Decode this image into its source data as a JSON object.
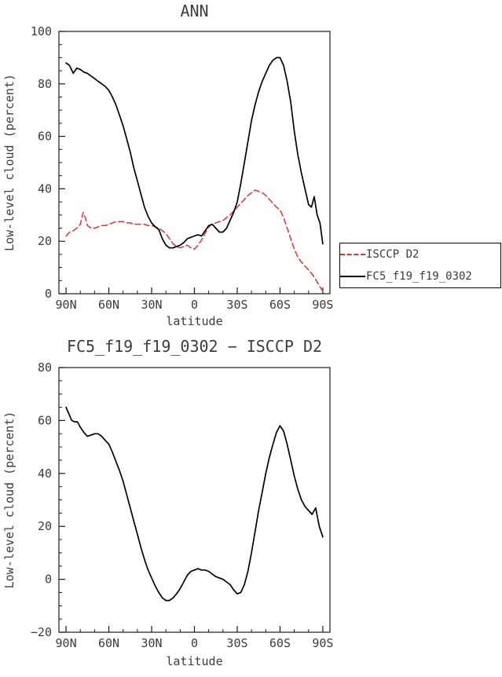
{
  "figure": {
    "background": "#ffffff",
    "text_color": "#3c3c3c",
    "frame_color": "#1a1a1a"
  },
  "legend": {
    "position": "right-of-top-chart",
    "entries": [
      {
        "label": "ISCCP D2",
        "style": "dashed",
        "color": "#dd3333"
      },
      {
        "label": "FC5_f19_f19_0302",
        "style": "solid",
        "color": "#000000"
      }
    ]
  },
  "chart_data": [
    {
      "type": "line",
      "title": "ANN",
      "xlabel": "latitude",
      "ylabel": "Low-level cloud (percent)",
      "xlim_left": 95,
      "xlim_right": -95,
      "ylim": [
        0,
        100
      ],
      "yticks": [
        0,
        20,
        40,
        60,
        80,
        100
      ],
      "y_minor_step": 5,
      "x_minor_step": 10,
      "grid": false,
      "legend_position": "outside-right",
      "xticks": [
        {
          "value": 90,
          "label": "90N"
        },
        {
          "value": 60,
          "label": "60N"
        },
        {
          "value": 30,
          "label": "30N"
        },
        {
          "value": 0,
          "label": "0"
        },
        {
          "value": -30,
          "label": "30S"
        },
        {
          "value": -60,
          "label": "60S"
        },
        {
          "value": -90,
          "label": "90S"
        }
      ],
      "series": [
        {
          "name": "ISCCP D2",
          "color": "#dd3333",
          "dash": "7 4",
          "width": 1.5,
          "x": [
            90,
            87.5,
            85,
            82.5,
            80,
            78,
            76.5,
            75,
            72.5,
            70,
            67.5,
            65,
            62.5,
            60,
            57.5,
            55,
            52.5,
            50,
            47.5,
            45,
            42.5,
            40,
            37.5,
            35,
            32.5,
            30,
            27.5,
            25,
            22.5,
            20,
            17.5,
            15,
            12.5,
            10,
            7.5,
            5,
            2.5,
            0,
            -2.5,
            -5,
            -7.5,
            -10,
            -12.5,
            -15,
            -17.5,
            -20,
            -22.5,
            -25,
            -27.5,
            -30,
            -32.5,
            -35,
            -37.5,
            -40,
            -42.5,
            -45,
            -47.5,
            -50,
            -52.5,
            -55,
            -57.5,
            -60,
            -62.5,
            -65,
            -67.5,
            -70,
            -72.5,
            -75,
            -77.5,
            -80,
            -82.5,
            -85,
            -87.5,
            -90
          ],
          "values": [
            22,
            23.5,
            24,
            25,
            26.5,
            31,
            29,
            26,
            25,
            25,
            25.5,
            26,
            26,
            26.5,
            27,
            27.5,
            27.5,
            27.5,
            27,
            27,
            26.5,
            26.5,
            26.5,
            26.5,
            26,
            26,
            25.5,
            25,
            24,
            23,
            21,
            19,
            18,
            17.5,
            18,
            18.5,
            17.5,
            17,
            18.5,
            20.5,
            23,
            25.5,
            26.5,
            27,
            27.5,
            28,
            29,
            30,
            31.5,
            33,
            34.5,
            36,
            37.5,
            38.5,
            39.5,
            39,
            38.5,
            37.5,
            36,
            34.5,
            33,
            32,
            29,
            25,
            21,
            17,
            14,
            12,
            10.5,
            9,
            7.5,
            5.5,
            3,
            1
          ]
        },
        {
          "name": "FC5_f19_f19_0302",
          "color": "#000000",
          "dash": "",
          "width": 1.7,
          "x": [
            90,
            87.5,
            85,
            82.5,
            80,
            77.5,
            75,
            72.5,
            70,
            67.5,
            65,
            62.5,
            60,
            57.5,
            55,
            52.5,
            50,
            47.5,
            45,
            42.5,
            40,
            37.5,
            35,
            32.5,
            30,
            27.5,
            25,
            22.5,
            20,
            17.5,
            15,
            12.5,
            10,
            7.5,
            5,
            2.5,
            0,
            -2.5,
            -5,
            -7.5,
            -10,
            -12.5,
            -15,
            -17.5,
            -20,
            -22.5,
            -25,
            -27.5,
            -30,
            -32.5,
            -35,
            -37.5,
            -40,
            -42.5,
            -45,
            -47.5,
            -50,
            -52.5,
            -55,
            -57.5,
            -60,
            -62.5,
            -65,
            -67.5,
            -70,
            -72.5,
            -75,
            -77.5,
            -80,
            -82,
            -84,
            -86,
            -88,
            -90
          ],
          "values": [
            88,
            87,
            84,
            86,
            85.5,
            84.5,
            84,
            83,
            82,
            81,
            80,
            79,
            77.5,
            75,
            72,
            68,
            64,
            59,
            54,
            48,
            43,
            38,
            33,
            29.5,
            27,
            25.5,
            24.5,
            21,
            18.5,
            17.5,
            17.5,
            18,
            18.5,
            19.5,
            21,
            21.5,
            22,
            22.5,
            22,
            24,
            26,
            26.5,
            25,
            23.5,
            23.5,
            25,
            28,
            31,
            35,
            42,
            50,
            58,
            66,
            72,
            77,
            81,
            84,
            87,
            89,
            90,
            90,
            87,
            81,
            73,
            62,
            53,
            46,
            40,
            34,
            33,
            37,
            30,
            27,
            19
          ]
        }
      ]
    },
    {
      "type": "line",
      "title": "FC5_f19_f19_0302 − ISCCP D2",
      "xlabel": "latitude",
      "ylabel": "Low-level cloud (percent)",
      "xlim_left": 95,
      "xlim_right": -95,
      "ylim": [
        -20,
        80
      ],
      "yticks": [
        -20,
        0,
        20,
        40,
        60,
        80
      ],
      "y_minor_step": 5,
      "x_minor_step": 10,
      "grid": false,
      "legend_position": "none",
      "xticks": [
        {
          "value": 90,
          "label": "90N"
        },
        {
          "value": 60,
          "label": "60N"
        },
        {
          "value": 30,
          "label": "30N"
        },
        {
          "value": 0,
          "label": "0"
        },
        {
          "value": -30,
          "label": "30S"
        },
        {
          "value": -60,
          "label": "60S"
        },
        {
          "value": -90,
          "label": "90S"
        }
      ],
      "series": [
        {
          "name": "FC5_f19_f19_0302 minus ISCCP D2",
          "color": "#000000",
          "dash": "",
          "width": 1.7,
          "x": [
            90,
            88,
            86,
            84,
            82,
            80,
            77.5,
            75,
            72.5,
            70,
            67.5,
            65,
            62.5,
            60,
            57.5,
            55,
            52.5,
            50,
            47.5,
            45,
            42.5,
            40,
            37.5,
            35,
            32.5,
            30,
            27.5,
            25,
            22.5,
            20,
            17.5,
            15,
            12.5,
            10,
            7.5,
            5,
            2.5,
            0,
            -2.5,
            -5,
            -7.5,
            -10,
            -12.5,
            -15,
            -17.5,
            -20,
            -22.5,
            -25,
            -27.5,
            -30,
            -32.5,
            -35,
            -37.5,
            -40,
            -42.5,
            -45,
            -47.5,
            -50,
            -52.5,
            -55,
            -57.5,
            -60,
            -62.5,
            -65,
            -67.5,
            -70,
            -72.5,
            -75,
            -77.5,
            -80,
            -82.5,
            -85,
            -87.5,
            -90
          ],
          "values": [
            65,
            62.5,
            60,
            59.5,
            59.5,
            57.5,
            55.5,
            54,
            54.5,
            55,
            55,
            54,
            52.5,
            51,
            48,
            44.5,
            41,
            37,
            32,
            27,
            22,
            17,
            12,
            7.5,
            3.5,
            0.5,
            -2.5,
            -5,
            -7,
            -8,
            -8,
            -7,
            -5.5,
            -3.5,
            -1,
            1.5,
            3,
            3.5,
            4,
            3.5,
            3.5,
            3,
            2,
            1,
            0.5,
            0,
            -1,
            -2,
            -4,
            -5.5,
            -5,
            -2,
            3,
            10,
            18,
            26,
            33,
            40,
            46,
            51,
            55.5,
            58,
            56,
            51,
            45,
            39,
            34,
            30,
            27.5,
            26,
            24.5,
            27,
            20,
            16
          ]
        }
      ]
    }
  ]
}
